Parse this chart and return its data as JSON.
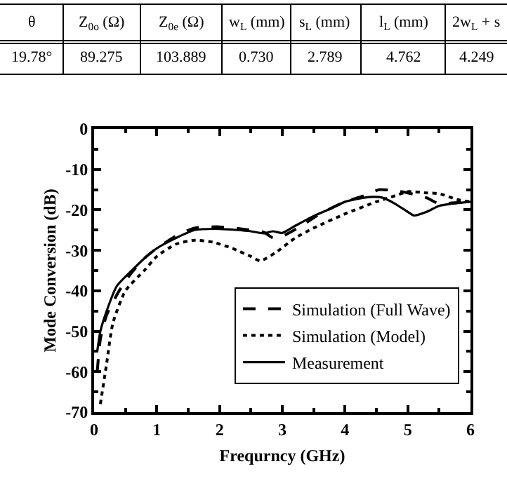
{
  "chart_data": {
    "type": "line",
    "xlabel": "Frequrncy (GHz)",
    "ylabel": "Mode Conversion (dB)",
    "xlim": [
      0,
      6
    ],
    "xticks": [
      0,
      1,
      2,
      3,
      4,
      5,
      6
    ],
    "ylim": [
      -70,
      0
    ],
    "yticks": [
      -70,
      -60,
      -50,
      -40,
      -30,
      -20,
      -10,
      0
    ],
    "legend": "bottom right",
    "annotations": [
      "θ",
      "Z$_{0o}$ (Ω)",
      "Z$_{0e}$ (Ω)",
      "w$_{L}$ (mm)",
      "s$_{L}$ (mm)",
      "l$_{L}$ (mm)",
      "2w$_{L}$ + s",
      "19.78°",
      "89.275",
      "103.889",
      "0.730",
      "2.789",
      "4.762",
      "4.249"
    ],
    "series": [
      {
        "name": "Simulation (Full Wave)",
        "color": "#000000",
        "line_style": "dashed",
        "x": [
          0.05,
          0.1,
          0.2,
          0.4,
          0.6,
          0.8,
          1.0,
          1.3,
          1.6,
          2.0,
          2.4,
          2.7,
          2.85,
          3.0,
          3.3,
          3.6,
          4.0,
          4.3,
          4.55,
          4.8,
          5.0,
          5.3,
          5.5,
          5.7,
          6.0
        ],
        "values": [
          -60,
          -52,
          -46,
          -40,
          -35.5,
          -32,
          -29.5,
          -26.5,
          -24.5,
          -24.2,
          -24.8,
          -25.5,
          -26.9,
          -26.5,
          -24,
          -21,
          -18,
          -16.5,
          -15,
          -15.3,
          -15.8,
          -17,
          -18.5,
          -18.3,
          -18
        ]
      },
      {
        "name": "Simulation (Model)",
        "color": "#000000",
        "line_style": "dotted",
        "x": [
          0.1,
          0.2,
          0.3,
          0.5,
          0.8,
          1.0,
          1.3,
          1.6,
          1.9,
          2.2,
          2.5,
          2.65,
          2.9,
          3.2,
          3.5,
          4.0,
          4.5,
          4.8,
          5.0,
          5.3,
          5.5,
          5.8,
          6.0
        ],
        "values": [
          -68,
          -58,
          -48,
          -40,
          -35,
          -31.5,
          -28.5,
          -27.5,
          -28,
          -29.5,
          -31.5,
          -32.6,
          -30.5,
          -27,
          -24.5,
          -21,
          -18,
          -16.5,
          -15.5,
          -15.8,
          -16,
          -17.5,
          -18
        ]
      },
      {
        "name": "Measurement",
        "color": "#000000",
        "line_style": "solid",
        "x": [
          0.05,
          0.1,
          0.2,
          0.36,
          0.6,
          0.8,
          1.0,
          1.3,
          1.6,
          2.0,
          2.5,
          2.7,
          2.85,
          3.0,
          3.2,
          3.5,
          3.8,
          4.0,
          4.3,
          4.47,
          4.6,
          4.8,
          5.0,
          5.1,
          5.3,
          5.5,
          5.7,
          6.0
        ],
        "values": [
          -55,
          -50,
          -45,
          -38.9,
          -35,
          -32,
          -29.5,
          -27,
          -25,
          -24.7,
          -25.3,
          -25.8,
          -25.3,
          -25.7,
          -24,
          -21.5,
          -19.5,
          -18,
          -17,
          -16.8,
          -17,
          -18.5,
          -20.5,
          -21.4,
          -20.5,
          -19,
          -18.5,
          -18
        ]
      }
    ]
  }
}
